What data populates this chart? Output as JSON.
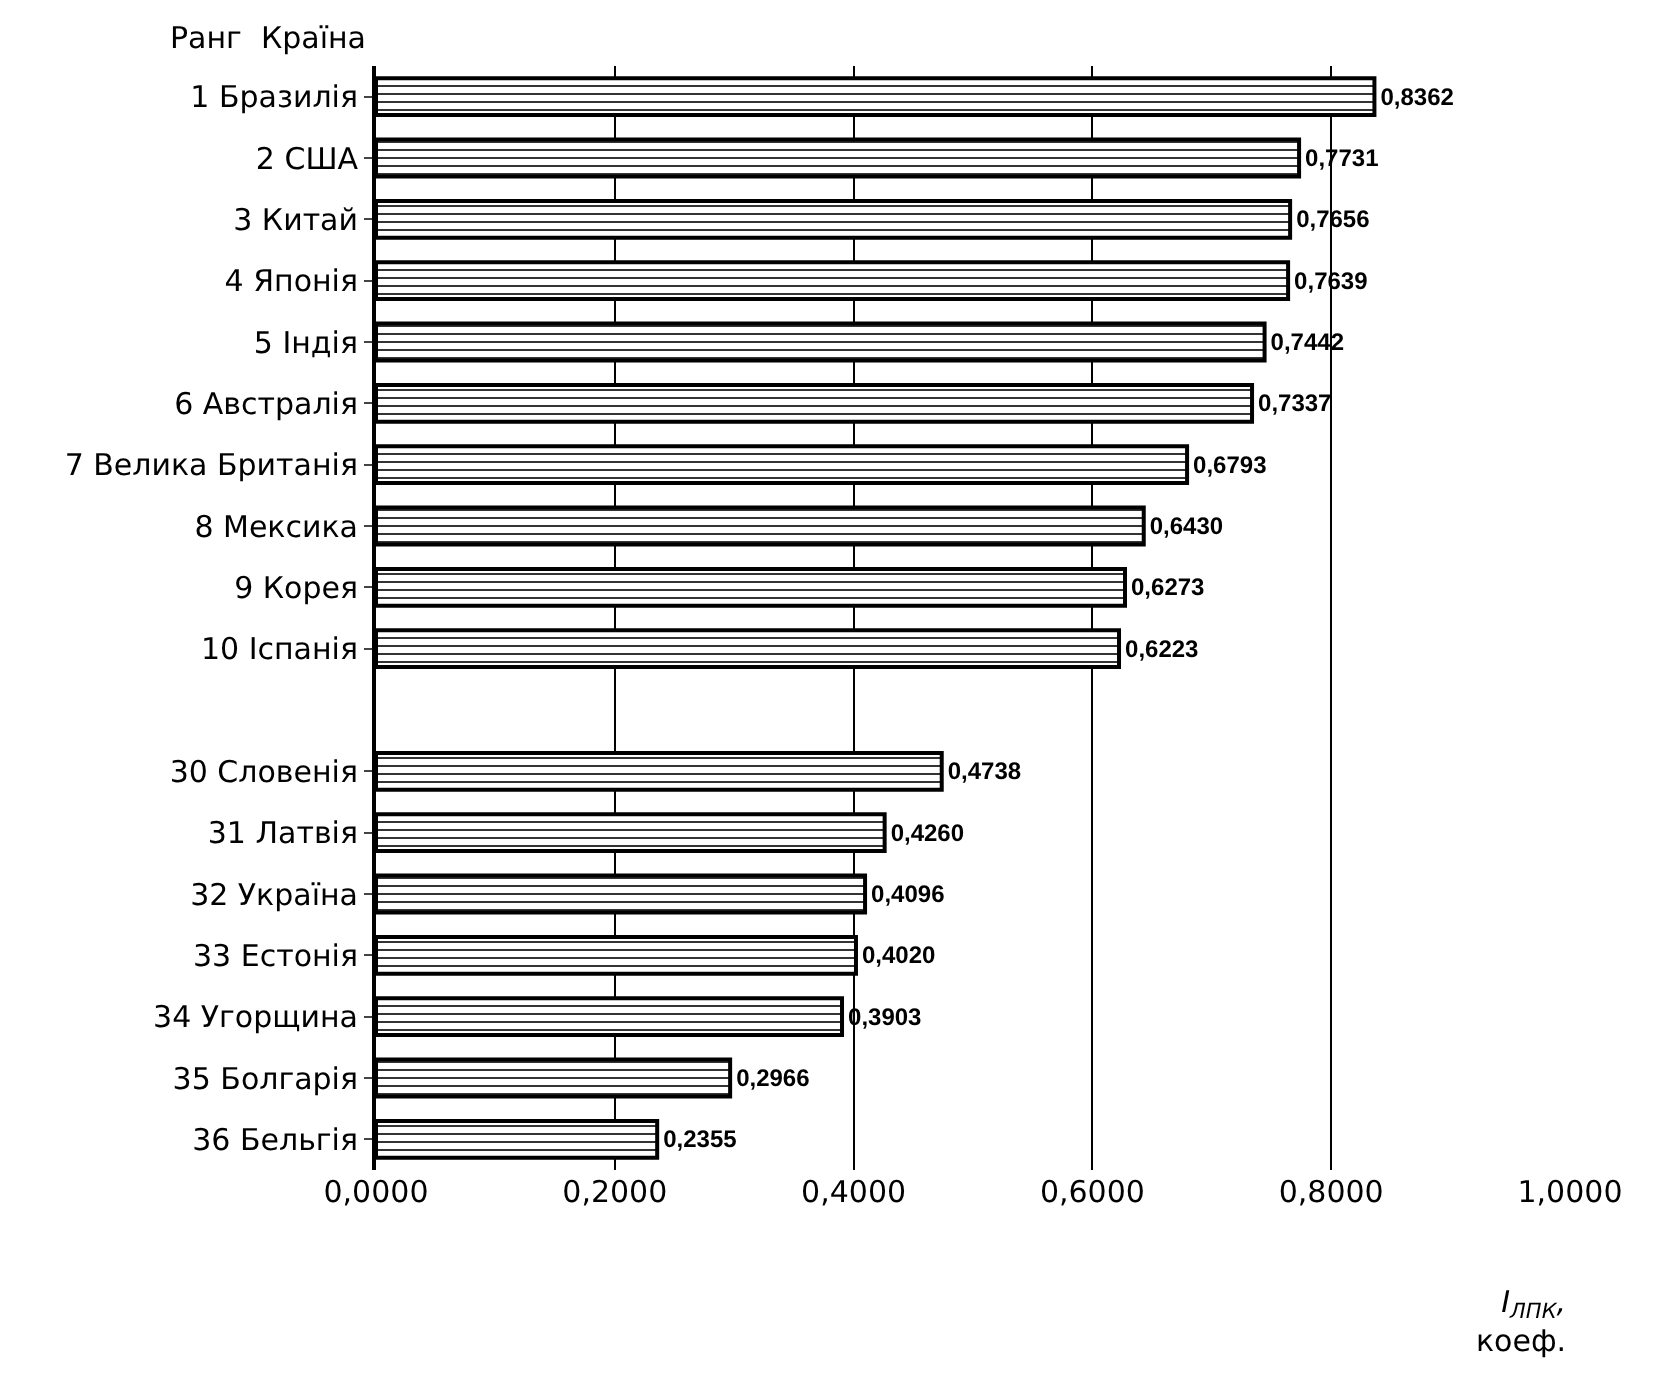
{
  "chart_data": {
    "type": "bar",
    "orientation": "horizontal",
    "ylabel": "Ранг  Країна",
    "xlabel": "I$_{ЛПК}$,\nкоеф.",
    "categories": [
      "1 Бразилія",
      "2 США",
      "3 Китай",
      "4 Японія",
      "5 Індія",
      "6 Австралія",
      "7 Велика Британія",
      "8 Мексика",
      "9 Корея",
      "10 Іспанія",
      null,
      "30 Словенія",
      "31 Латвія",
      "32 Україна",
      "33 Естонія",
      "34 Угорщина",
      "35 Болгарія",
      "36 Бельгія"
    ],
    "values": [
      0.8362,
      0.7731,
      0.7656,
      0.7639,
      0.7442,
      0.7337,
      0.6793,
      0.643,
      0.6273,
      0.6223,
      null,
      0.4738,
      0.426,
      0.4096,
      0.402,
      0.3903,
      0.2966,
      0.2355
    ],
    "value_labels": [
      "0,8362",
      "0,7731",
      "0,7656",
      "0,7639",
      "0,7442",
      "0,7337",
      "0,6793",
      "0,6430",
      "0,6273",
      "0,6223",
      null,
      "0,4738",
      "0,4260",
      "0,4096",
      "0,4020",
      "0,3903",
      "0,2966",
      "0,2355"
    ],
    "color": "#000000",
    "xlim": [
      0,
      1
    ],
    "xticks": [
      {
        "value": 0,
        "label": "0,0000"
      },
      {
        "value": 0.2,
        "label": "0,2000"
      },
      {
        "value": 0.4,
        "label": "0,4000"
      },
      {
        "value": 0.6,
        "label": "0,6000"
      },
      {
        "value": 0.8,
        "label": "0,8000"
      },
      {
        "value": 1,
        "label": "1,0000"
      }
    ],
    "grid": "x",
    "legend": false
  }
}
